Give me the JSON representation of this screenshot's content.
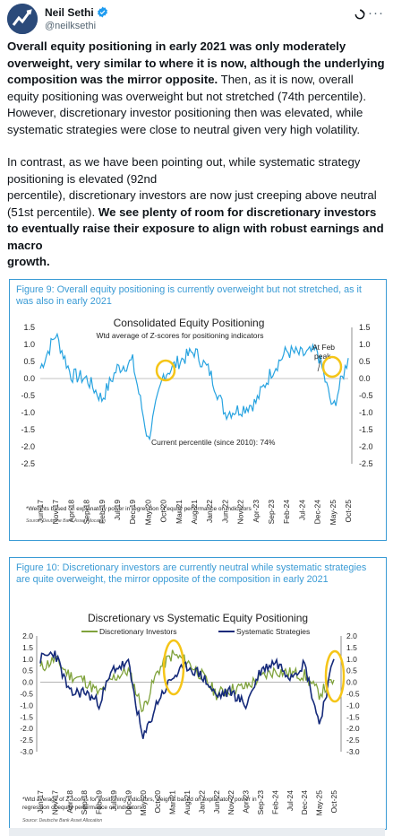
{
  "author": {
    "name": "Neil Sethi",
    "handle": "@neilksethi"
  },
  "icons": {
    "verified": "verified-badge-icon",
    "grok": "grok-icon",
    "more": "more-icon"
  },
  "colors": {
    "accent": "#3a9bd5",
    "verified": "#1d9bf0",
    "green": "#7fa23b",
    "navy": "#152a7a",
    "highlight": "#f5c518"
  },
  "tweet": {
    "p1_bold": "Overall equity positioning in early 2021 was only moderately overweight, very similar to where it is now, although the underlying composition was the mirror opposite.",
    "p1_rest": " Then, as it is now, overall equity positioning was overweight but not stretched (74th percentile). However, discretionary investor positioning then was elevated, while systematic strategies were close to neutral given very high volatility.",
    "p2_a": "In contrast, as we have been pointing out, while systematic strategy positioning is elevated (92nd",
    "p2_b": "percentile), discretionary investors are now just creeping above neutral (51st percentile). ",
    "p2_bold_a": "We see plenty of room for discretionary investors to eventually raise their exposure to align with robust earnings and macro",
    "p2_bold_b": "growth."
  },
  "figure9": {
    "caption": "Figure 9: Overall equity positioning is currently overweight but not stretched, as it was also in early 2021",
    "footnote": "*Weights based on explanatory power in regression of equity performance on indicators",
    "source": "Source: Deutsche Bank Asset Allocation"
  },
  "figure10": {
    "caption": "Figure 10: Discretionary investors are currently neutral while systematic strategies are quite overweight, the mirror opposite of the composition in early 2021",
    "footnote_a": "*Wtd average of Z-scores for positioning indicators, weights based on explanatory power in",
    "footnote_b": "regression of equity performance on indicators",
    "source": "Source: Deutsche Bank Asset Allocation"
  },
  "chart_data": [
    {
      "type": "line",
      "title": "Consolidated Equity Positioning",
      "subtitle": "Wtd average of Z-scores for positioning indicators",
      "annotations": [
        "At Feb peak",
        "Current percentile (since 2010): 74%"
      ],
      "x": [
        "Jun-17",
        "Nov-17",
        "Apr-18",
        "Sep-18",
        "Feb-19",
        "Jul-19",
        "Dec-19",
        "May-20",
        "Oct-20",
        "Mar-21",
        "Aug-21",
        "Jan-22",
        "Jun-22",
        "Nov-22",
        "Apr-23",
        "Sep-23",
        "Feb-24",
        "Jul-24",
        "Dec-24",
        "May-25",
        "Oct-25"
      ],
      "series": [
        {
          "values": [
            0.3,
            1.3,
            0.1,
            0.0,
            -0.6,
            0.3,
            0.5,
            -1.8,
            0.1,
            0.5,
            0.8,
            0.2,
            -1.0,
            -0.9,
            -0.7,
            0.2,
            0.8,
            0.7,
            0.8,
            -0.9,
            0.6
          ]
        }
      ],
      "ylim": [
        -2.5,
        1.5
      ],
      "yticks": [
        "1.5",
        "1.0",
        "0.5",
        "0.0",
        "-0.5",
        "-1.0",
        "-1.5",
        "-2.0",
        "-2.5"
      ],
      "yticks_right": [
        "1.5",
        "1.0",
        "0.5",
        "0.0",
        "-0.5",
        "-1.0",
        "-1.5",
        "-2.0",
        "-2.5"
      ],
      "grid": false
    },
    {
      "type": "line",
      "title": "Discretionary vs Systematic Equity Positioning",
      "x": [
        "Jun-17",
        "Nov-17",
        "Apr-18",
        "Sep-18",
        "Feb-19",
        "Jul-19",
        "Dec-19",
        "May-20",
        "Oct-20",
        "Mar-21",
        "Aug-21",
        "Jan-22",
        "Jun-22",
        "Nov-22",
        "Apr-23",
        "Sep-23",
        "Feb-24",
        "Jul-24",
        "Dec-24",
        "May-25",
        "Oct-25"
      ],
      "series": [
        {
          "name": "Discretionary Investors",
          "values": [
            0.6,
            1.0,
            0.3,
            0.1,
            -0.5,
            0.2,
            0.5,
            -1.2,
            0.5,
            1.2,
            0.9,
            0.3,
            -0.5,
            -0.3,
            -0.2,
            0.2,
            0.5,
            0.4,
            0.3,
            -0.5,
            0.1
          ]
        },
        {
          "name": "Systematic Strategies",
          "values": [
            1.0,
            1.3,
            -0.5,
            -0.4,
            -0.9,
            0.6,
            0.8,
            -2.5,
            -0.8,
            0.2,
            0.7,
            0.3,
            -0.6,
            -0.4,
            -1.0,
            0.5,
            0.9,
            0.3,
            0.8,
            -1.8,
            1.0
          ]
        }
      ],
      "ylim": [
        -3.0,
        2.0
      ],
      "yticks": [
        "2.0",
        "1.5",
        "1.0",
        "0.5",
        "0.0",
        "-0.5",
        "-1.0",
        "-1.5",
        "-2.0",
        "-2.5",
        "-3.0"
      ],
      "yticks_right": [
        "2.0",
        "1.5",
        "1.0",
        "0.5",
        "0.0",
        "-0.5",
        "-1.0",
        "-1.5",
        "-2.0",
        "-2.5",
        "-3.0"
      ],
      "legend": "top",
      "grid": false
    }
  ]
}
